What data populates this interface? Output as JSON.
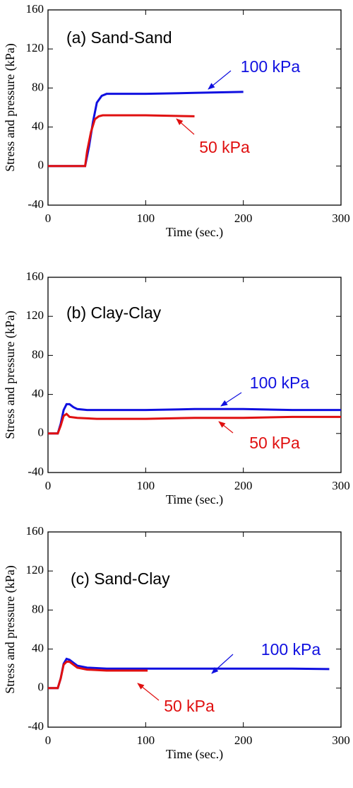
{
  "chart_data": [
    {
      "type": "line",
      "title": "(a) Sand-Sand",
      "x_label": "Time (sec.)",
      "y_label": "Stress and pressure (kPa)",
      "xlim": [
        0,
        300
      ],
      "xticks": [
        0,
        100,
        200,
        300
      ],
      "ylim": [
        -40,
        160
      ],
      "yticks": [
        -40,
        0,
        40,
        80,
        120,
        160
      ],
      "series": [
        {
          "name": "100 kPa",
          "color": "#1010e0",
          "x": [
            0,
            38,
            42,
            46,
            50,
            55,
            60,
            70,
            100,
            150,
            200
          ],
          "values": [
            0,
            0,
            20,
            45,
            65,
            72,
            74,
            74,
            74,
            75,
            76
          ]
        },
        {
          "name": "50 kPa",
          "color": "#e01010",
          "x": [
            0,
            38,
            40,
            44,
            48,
            52,
            56,
            100,
            150
          ],
          "values": [
            0,
            0,
            15,
            35,
            48,
            51,
            52,
            52,
            51
          ]
        }
      ]
    },
    {
      "type": "line",
      "title": "(b) Clay-Clay",
      "x_label": "Time (sec.)",
      "y_label": "Stress and pressure (kPa)",
      "xlim": [
        0,
        300
      ],
      "xticks": [
        0,
        100,
        200,
        300
      ],
      "ylim": [
        -40,
        160
      ],
      "yticks": [
        -40,
        0,
        40,
        80,
        120,
        160
      ],
      "series": [
        {
          "name": "100 kPa",
          "color": "#1010e0",
          "x": [
            0,
            10,
            13,
            16,
            19,
            22,
            26,
            30,
            40,
            50,
            100,
            150,
            200,
            250,
            300
          ],
          "values": [
            0,
            0,
            10,
            24,
            30,
            30,
            27,
            25,
            24,
            24,
            24,
            25,
            25,
            24,
            24
          ]
        },
        {
          "name": "50 kPa",
          "color": "#e01010",
          "x": [
            0,
            10,
            13,
            16,
            19,
            22,
            30,
            50,
            100,
            150,
            200,
            250,
            300
          ],
          "values": [
            0,
            0,
            8,
            18,
            20,
            17,
            16,
            15,
            15,
            16,
            16,
            17,
            17
          ]
        }
      ]
    },
    {
      "type": "line",
      "title": "(c) Sand-Clay",
      "x_label": "Time (sec.)",
      "y_label": "Stress and pressure (kPa)",
      "xlim": [
        0,
        300
      ],
      "xticks": [
        0,
        100,
        200,
        300
      ],
      "ylim": [
        -40,
        160
      ],
      "yticks": [
        -40,
        0,
        40,
        80,
        120,
        160
      ],
      "series": [
        {
          "name": "100 kPa",
          "color": "#1010e0",
          "x": [
            0,
            10,
            13,
            16,
            19,
            22,
            26,
            30,
            40,
            60,
            100,
            150,
            200,
            250,
            288
          ],
          "values": [
            0,
            0,
            10,
            25,
            30,
            29,
            26,
            23,
            21,
            20,
            20,
            20,
            20,
            20,
            19.5
          ]
        },
        {
          "name": "50 kPa",
          "color": "#e01010",
          "x": [
            0,
            10,
            13,
            16,
            19,
            22,
            26,
            30,
            40,
            60,
            80,
            102
          ],
          "values": [
            0,
            0,
            10,
            24,
            27,
            27,
            24,
            21,
            19,
            18,
            18,
            18
          ]
        }
      ]
    }
  ]
}
